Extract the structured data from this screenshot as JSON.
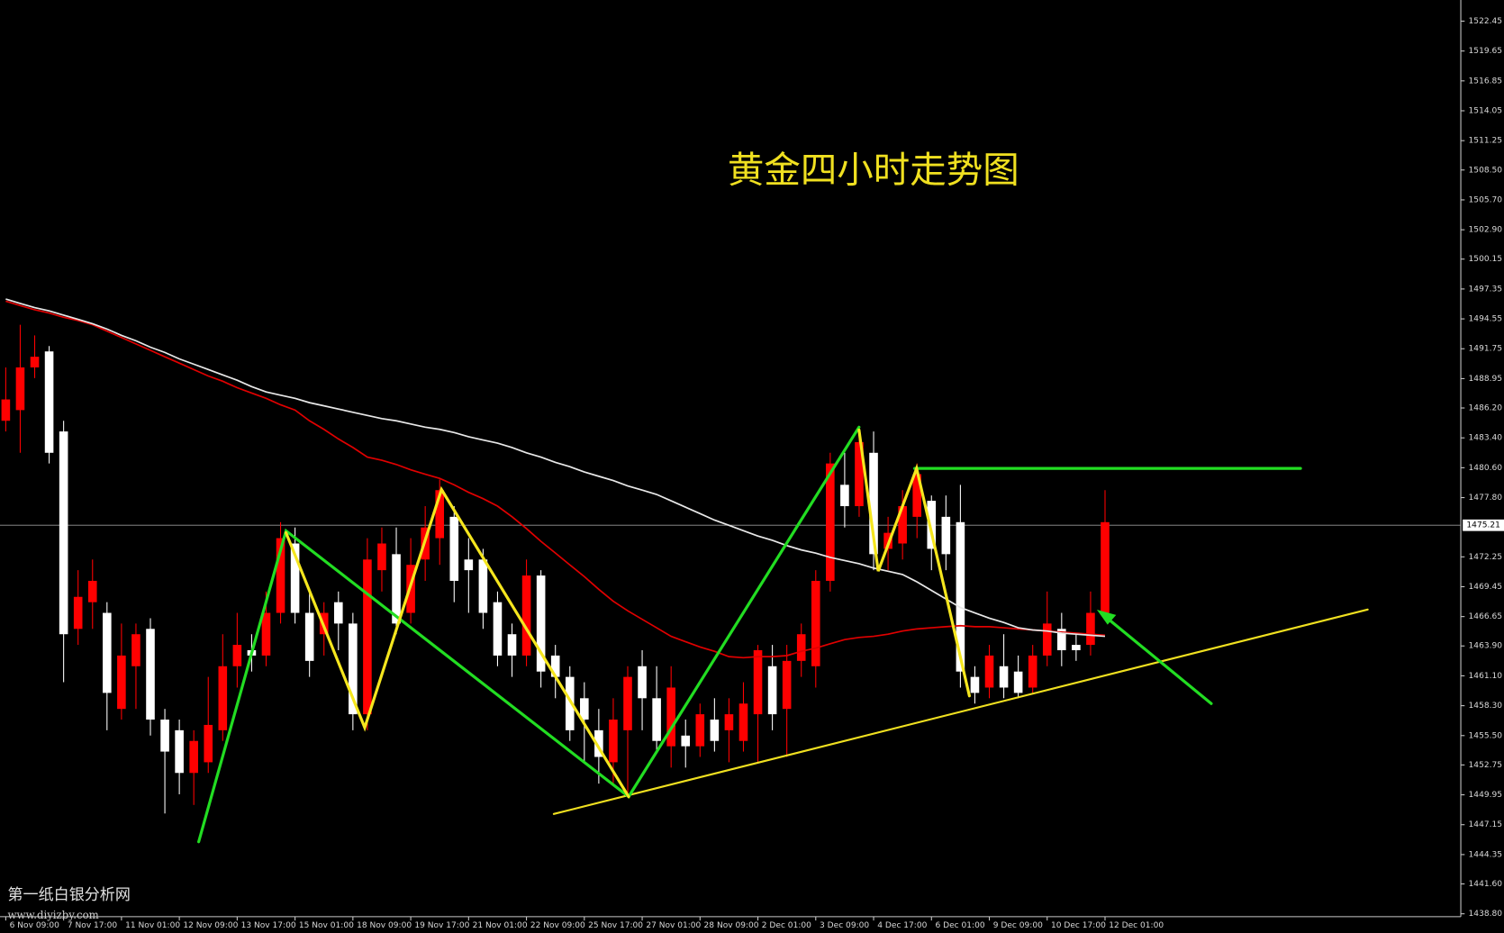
{
  "chart_data": {
    "type": "candlestick",
    "title": "黄金四小时走势图",
    "watermark": [
      "第一纸白银分析网",
      "www.diyizby.com"
    ],
    "up_color": "#ff0000",
    "down_color": "#ffffff",
    "categories": [
      "6 Nov 09:00",
      null,
      null,
      null,
      "7 Nov 17:00",
      null,
      null,
      null,
      "11 Nov 01:00",
      null,
      null,
      null,
      "12 Nov 09:00",
      null,
      null,
      null,
      "13 Nov 17:00",
      null,
      null,
      null,
      "15 Nov 01:00",
      null,
      null,
      null,
      "18 Nov 09:00",
      null,
      null,
      null,
      "19 Nov 17:00",
      null,
      null,
      null,
      "21 Nov 01:00",
      null,
      null,
      null,
      "22 Nov 09:00",
      null,
      null,
      null,
      "25 Nov 17:00",
      null,
      null,
      null,
      "27 Nov 01:00",
      null,
      null,
      null,
      "28 Nov 09:00",
      null,
      null,
      null,
      "2 Dec 01:00",
      null,
      null,
      null,
      "3 Dec 09:00",
      null,
      null,
      null,
      "4 Dec 17:00",
      null,
      null,
      null,
      "6 Dec 01:00",
      null,
      null,
      null,
      "9 Dec 09:00",
      null,
      null,
      null,
      "10 Dec 17:00",
      null,
      null,
      null,
      "12 Dec 01:00"
    ],
    "open": [
      1485,
      1486,
      1490,
      1491.5,
      1484,
      1465.5,
      1468,
      1467,
      1458,
      1462,
      1465.5,
      1457,
      1456,
      1452,
      1453,
      1456,
      1462,
      1463.5,
      1463,
      1467,
      1473.5,
      1467,
      1465,
      1468,
      1466,
      1457.5,
      1471,
      1472.5,
      1467,
      1472,
      1474,
      1476,
      1472,
      1472,
      1468,
      1465,
      1463,
      1470.5,
      1463,
      1461,
      1459,
      1456,
      1453,
      1456,
      1462,
      1459,
      1454.5,
      1455.5,
      1454.5,
      1457,
      1456,
      1455,
      1457.5,
      1462,
      1458,
      1462.5,
      1462,
      1470,
      1479,
      1477,
      1482,
      1473,
      1473.5,
      1476,
      1477.5,
      1476,
      1475.5,
      1461,
      1460,
      1462,
      1461.5,
      1460,
      1463,
      1465.5,
      1464,
      1464,
      1467
    ],
    "high": [
      1490,
      1494,
      1493,
      1492,
      1485,
      1471,
      1472,
      1468,
      1466,
      1466,
      1466.5,
      1458,
      1457,
      1456,
      1461,
      1465,
      1467,
      1465,
      1469,
      1475.5,
      1475,
      1469,
      1468,
      1469,
      1467,
      1474,
      1475,
      1475,
      1474,
      1477,
      1479.5,
      1477,
      1474,
      1473,
      1469,
      1466,
      1472,
      1471,
      1464,
      1462,
      1460.5,
      1458,
      1459,
      1462,
      1463.5,
      1462,
      1462,
      1457,
      1458.5,
      1459,
      1459,
      1460.5,
      1464,
      1464,
      1464,
      1466,
      1471,
      1482,
      1482,
      1484.5,
      1484,
      1476,
      1478.5,
      1481,
      1478,
      1478,
      1479,
      1462,
      1464,
      1465,
      1463,
      1464,
      1469,
      1467,
      1465,
      1469,
      1478.5
    ],
    "low": [
      1484,
      1482,
      1489,
      1481,
      1460.5,
      1464,
      1465.5,
      1456,
      1457,
      1458,
      1455.5,
      1448.2,
      1450,
      1449,
      1452,
      1455,
      1460,
      1461.5,
      1462,
      1466,
      1466,
      1461,
      1463,
      1463.5,
      1456,
      1456,
      1469,
      1465,
      1466,
      1470,
      1471.5,
      1468,
      1467,
      1465.5,
      1462,
      1461,
      1462,
      1460,
      1459,
      1455,
      1453,
      1451,
      1451,
      1449.7,
      1456,
      1454,
      1452.5,
      1452.5,
      1453.5,
      1454,
      1453,
      1454,
      1453,
      1456,
      1453.5,
      1461,
      1460,
      1469,
      1475,
      1476,
      1471,
      1471,
      1472,
      1474,
      1471,
      1471,
      1460,
      1458.5,
      1459,
      1459,
      1459,
      1459.5,
      1462,
      1462,
      1462.5,
      1463,
      1466.5
    ],
    "close": [
      1487,
      1490,
      1491,
      1482,
      1465,
      1468.5,
      1470,
      1459.5,
      1463,
      1465,
      1457,
      1454,
      1452,
      1455,
      1456.5,
      1462,
      1464,
      1463,
      1467,
      1474,
      1467,
      1462.5,
      1467,
      1466,
      1457.5,
      1472,
      1473.5,
      1466,
      1471.5,
      1475,
      1478.5,
      1470,
      1471,
      1467,
      1463,
      1463,
      1470.5,
      1461.5,
      1461,
      1456,
      1457,
      1453.5,
      1457,
      1461,
      1459,
      1455,
      1460,
      1454.5,
      1457.5,
      1455,
      1457.5,
      1458.5,
      1463.5,
      1457.5,
      1462.5,
      1465,
      1470,
      1481,
      1477,
      1483,
      1472.5,
      1474.5,
      1477,
      1480,
      1473,
      1472.5,
      1461.5,
      1459.5,
      1463,
      1460,
      1459.5,
      1463,
      1466,
      1463.5,
      1463.5,
      1467,
      1475.5
    ],
    "series": [
      {
        "color": "#e00000",
        "values": [
          1496.2,
          1495.8,
          1495.4,
          1495.1,
          1494.7,
          1494.4,
          1494.0,
          1493.4,
          1492.8,
          1492.2,
          1491.6,
          1491.0,
          1490.4,
          1489.8,
          1489.2,
          1488.7,
          1488.1,
          1487.6,
          1487.1,
          1486.5,
          1486.0,
          1485.0,
          1484.2,
          1483.3,
          1482.5,
          1481.6,
          1481.3,
          1480.9,
          1480.4,
          1480.0,
          1479.6,
          1479.0,
          1478.3,
          1477.7,
          1477.0,
          1476.0,
          1474.9,
          1473.7,
          1472.6,
          1471.5,
          1470.4,
          1469.2,
          1468.1,
          1467.2,
          1466.4,
          1465.6,
          1464.8,
          1464.3,
          1463.8,
          1463.4,
          1462.9,
          1462.8,
          1462.9,
          1462.9,
          1463.0,
          1463.4,
          1463.7,
          1464.1,
          1464.5,
          1464.7,
          1464.8,
          1465.0,
          1465.3,
          1465.5,
          1465.6,
          1465.7,
          1465.8,
          1465.7,
          1465.7,
          1465.6,
          1465.5,
          1465.4,
          1465.3,
          1465.2,
          1465.1,
          1465.0,
          1464.9
        ]
      },
      {
        "color": "#e8e8e8",
        "values": [
          1496.4,
          1496.0,
          1495.6,
          1495.3,
          1494.9,
          1494.5,
          1494.1,
          1493.6,
          1493.0,
          1492.5,
          1491.9,
          1491.4,
          1490.8,
          1490.3,
          1489.8,
          1489.3,
          1488.8,
          1488.2,
          1487.7,
          1487.4,
          1487.1,
          1486.7,
          1486.4,
          1486.1,
          1485.8,
          1485.5,
          1485.2,
          1485.0,
          1484.7,
          1484.4,
          1484.2,
          1483.9,
          1483.5,
          1483.2,
          1482.9,
          1482.5,
          1482.0,
          1481.6,
          1481.1,
          1480.7,
          1480.2,
          1479.8,
          1479.4,
          1478.9,
          1478.5,
          1478.1,
          1477.5,
          1476.9,
          1476.3,
          1475.7,
          1475.2,
          1474.7,
          1474.2,
          1473.8,
          1473.3,
          1472.9,
          1472.6,
          1472.2,
          1471.9,
          1471.6,
          1471.2,
          1470.9,
          1470.6,
          1469.9,
          1469.1,
          1468.3,
          1467.5,
          1467.0,
          1466.5,
          1466.1,
          1465.6,
          1465.4,
          1465.3,
          1465.1,
          1465.0,
          1464.9,
          1464.8
        ]
      }
    ],
    "current_price": 1475.21,
    "ylim": [
      1438.53,
      1524.43
    ],
    "yticks": [
      {
        "value": 1438.8,
        "label": "1438.80"
      },
      {
        "value": 1441.6,
        "label": "1441.60"
      },
      1444.35,
      1447.15,
      1449.95,
      1452.75,
      {
        "value": 1455.5,
        "label": "1455.50"
      },
      {
        "value": 1458.3,
        "label": "1458.30"
      },
      {
        "value": 1461.1,
        "label": "1461.10"
      },
      {
        "value": 1463.9,
        "label": "1463.90"
      },
      1466.65,
      1469.45,
      1472.25,
      {
        "value": 1477.8,
        "label": "1477.80"
      },
      {
        "value": 1480.6,
        "label": "1480.60"
      },
      {
        "value": 1483.4,
        "label": "1483.40"
      },
      {
        "value": 1486.2,
        "label": "1486.20"
      },
      1488.95,
      1491.75,
      1494.55,
      1497.35,
      1500.15,
      {
        "value": 1502.9,
        "label": "1502.90"
      },
      {
        "value": 1505.7,
        "label": "1505.70"
      },
      {
        "value": 1508.5,
        "label": "1508.50"
      },
      1511.25,
      1514.05,
      1516.85,
      1519.65,
      1522.45
    ]
  }
}
